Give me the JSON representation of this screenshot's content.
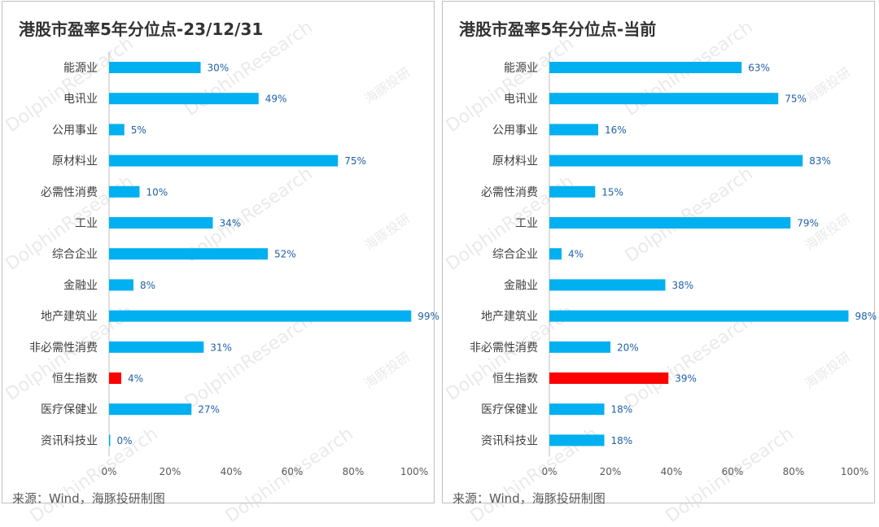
{
  "source_text": "来源：Wind，海豚投研制图",
  "watermark": {
    "brand": "DolphinResearch",
    "cn": "海豚投研"
  },
  "colors": {
    "bar": "#00b0f0",
    "highlight": "#ff0000",
    "label": "#1f5fa8",
    "axis": "#7f7f7f"
  },
  "chart_data": [
    {
      "type": "bar",
      "orientation": "horizontal",
      "title": "港股市盈率5年分位点-23/12/31",
      "categories": [
        "能源业",
        "电讯业",
        "公用事业",
        "原材料业",
        "必需性消费",
        "工业",
        "综合企业",
        "金融业",
        "地产建筑业",
        "非必需性消费",
        "恒生指数",
        "医疗保健业",
        "资讯科技业"
      ],
      "values": [
        30,
        49,
        5,
        75,
        10,
        34,
        52,
        8,
        99,
        31,
        4,
        27,
        0
      ],
      "value_labels": [
        "30%",
        "49%",
        "5%",
        "75%",
        "10%",
        "34%",
        "52%",
        "8%",
        "99%",
        "31%",
        "4%",
        "27%",
        "0%"
      ],
      "highlight_category": "恒生指数",
      "xlim": [
        0,
        100
      ],
      "xticks": [
        "0%",
        "20%",
        "40%",
        "60%",
        "80%",
        "100%"
      ],
      "grid": false,
      "legend": "none"
    },
    {
      "type": "bar",
      "orientation": "horizontal",
      "title": "港股市盈率5年分位点-当前",
      "categories": [
        "能源业",
        "电讯业",
        "公用事业",
        "原材料业",
        "必需性消费",
        "工业",
        "综合企业",
        "金融业",
        "地产建筑业",
        "非必需性消费",
        "恒生指数",
        "医疗保健业",
        "资讯科技业"
      ],
      "values": [
        63,
        75,
        16,
        83,
        15,
        79,
        4,
        38,
        98,
        20,
        39,
        18,
        18
      ],
      "value_labels": [
        "63%",
        "75%",
        "16%",
        "83%",
        "15%",
        "79%",
        "4%",
        "38%",
        "98%",
        "20%",
        "39%",
        "18%",
        "18%"
      ],
      "highlight_category": "恒生指数",
      "xlim": [
        0,
        100
      ],
      "xticks": [
        "0%",
        "20%",
        "40%",
        "60%",
        "80%",
        "100%"
      ],
      "grid": false,
      "legend": "none"
    }
  ]
}
